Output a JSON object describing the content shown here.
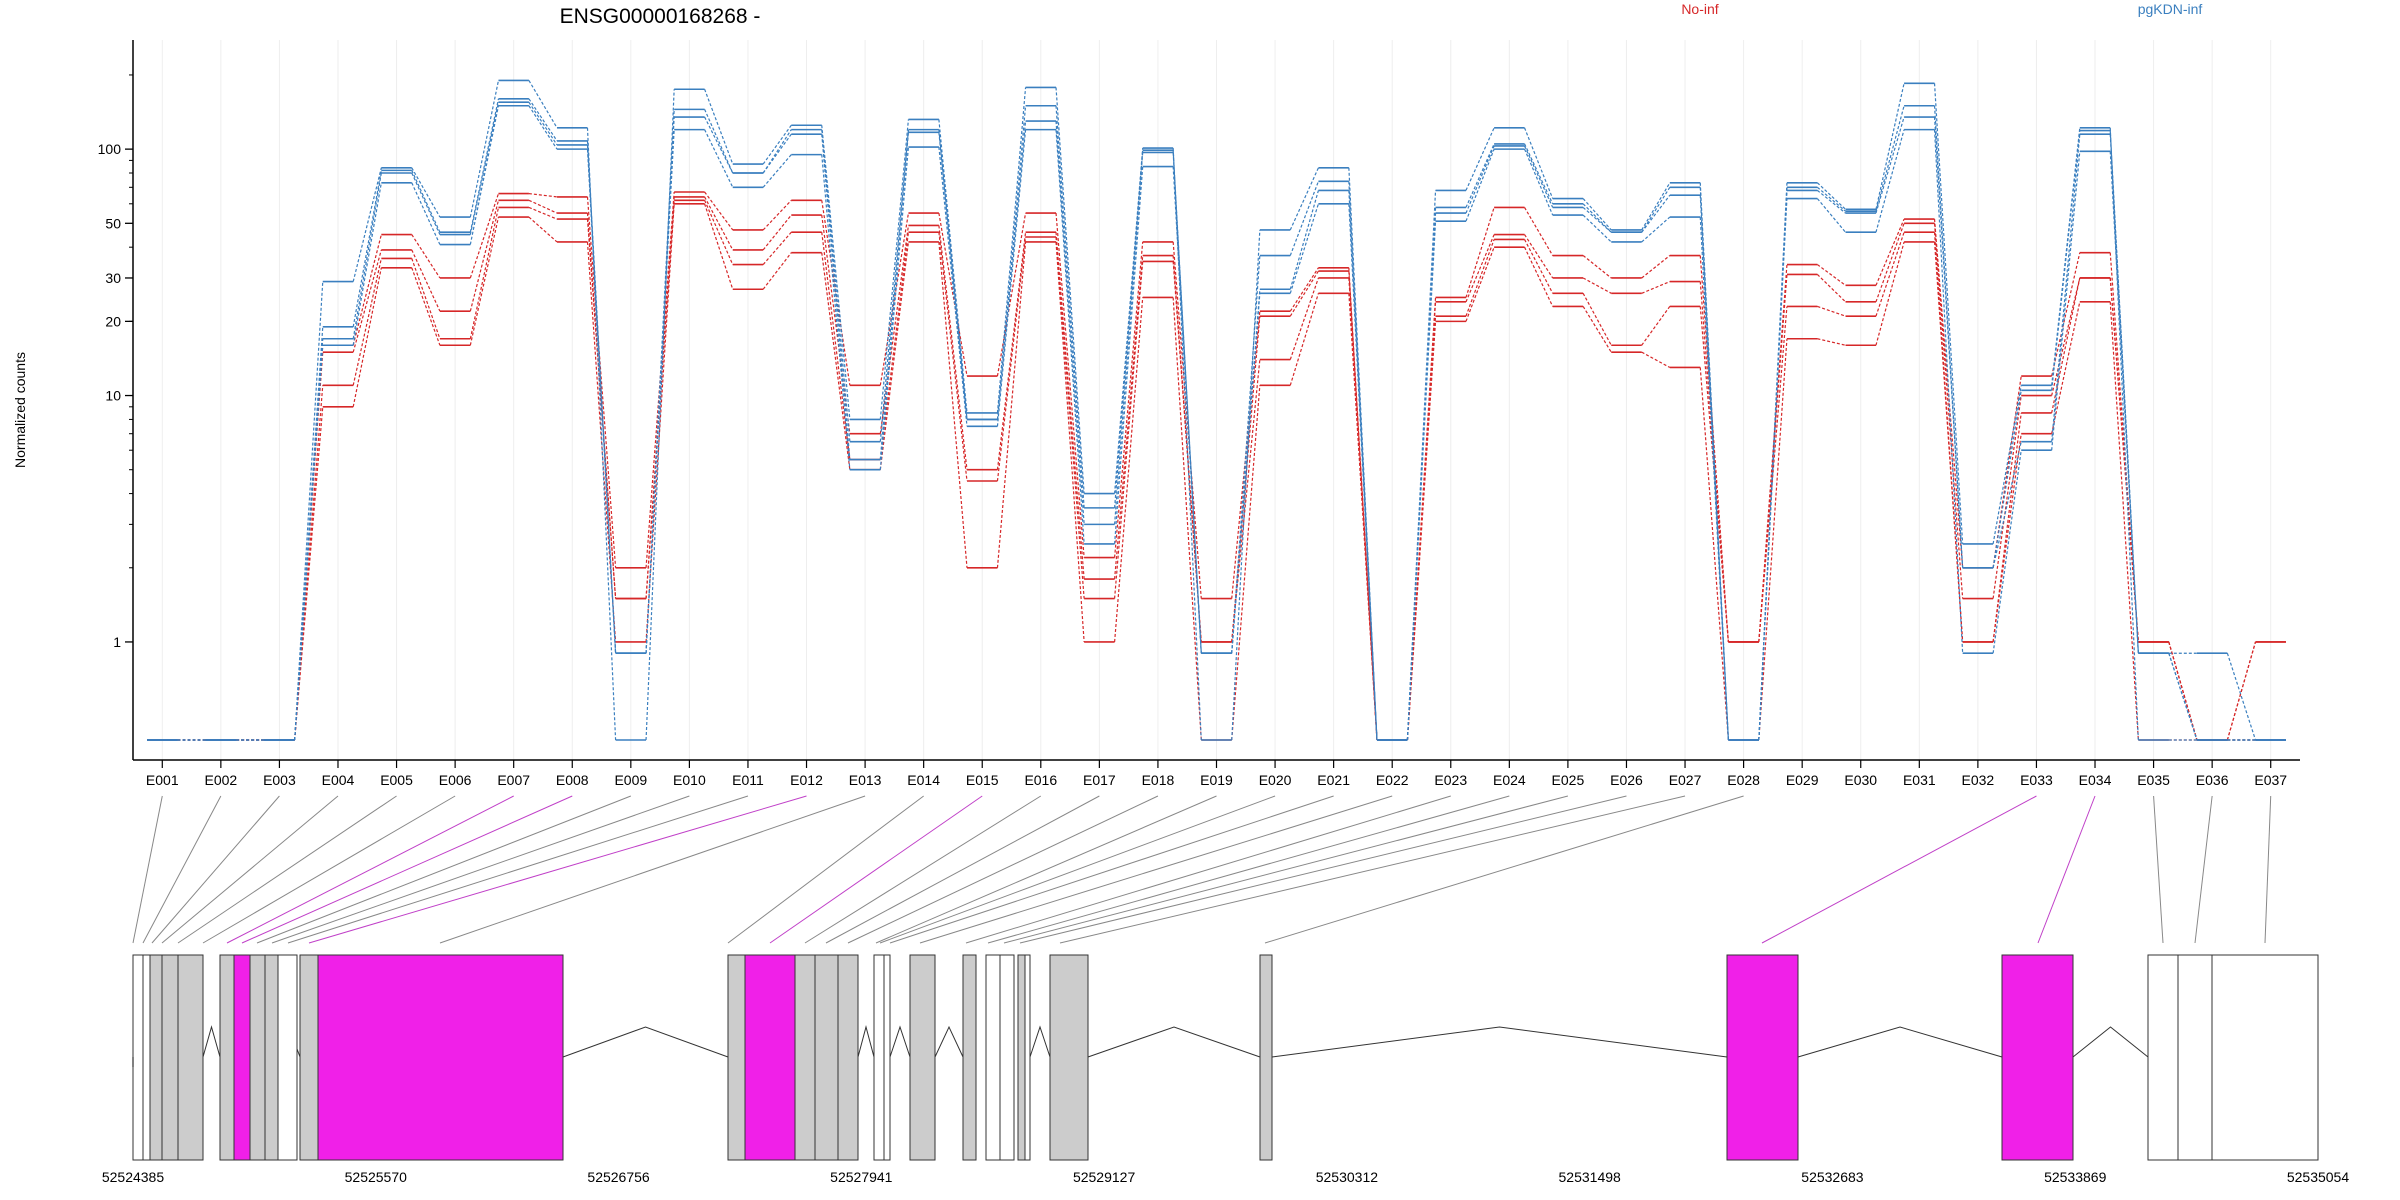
{
  "title": "ENSG00000168268 -",
  "ylabel": "Normalized counts",
  "legend": [
    {
      "name": "No-inf",
      "color": "#d62728"
    },
    {
      "name": "pgKDN-inf",
      "color": "#3a7fbf"
    }
  ],
  "y_ticks": [
    "100",
    "50",
    "30",
    "20",
    "10",
    "1"
  ],
  "genomic_ticks": [
    "52524385",
    "52525570",
    "52526756",
    "52527941",
    "52529127",
    "52530312",
    "52531498",
    "52532683",
    "52533869",
    "52535054"
  ],
  "chart_data": {
    "type": "line",
    "title": "ENSG00000168268 -",
    "xlabel": "",
    "ylabel": "Normalized counts",
    "y_scale": "log",
    "ylim": [
      0.4,
      230
    ],
    "categories": [
      "E001",
      "E002",
      "E003",
      "E004",
      "E005",
      "E006",
      "E007",
      "E008",
      "E009",
      "E010",
      "E011",
      "E012",
      "E013",
      "E014",
      "E015",
      "E016",
      "E017",
      "E018",
      "E019",
      "E020",
      "E021",
      "E022",
      "E023",
      "E024",
      "E025",
      "E026",
      "E027",
      "E028",
      "E029",
      "E030",
      "E031",
      "E032",
      "E033",
      "E034",
      "E035",
      "E036",
      "E037"
    ],
    "series": [
      {
        "name": "No-inf",
        "color": "#d62728",
        "values": [
          0.4,
          0.4,
          0.4,
          9,
          33,
          16,
          53,
          42,
          1,
          60,
          27,
          38,
          5,
          42,
          2,
          42,
          1,
          25,
          0.4,
          11,
          26,
          0.4,
          20,
          40,
          23,
          15,
          13,
          0.4,
          17,
          16,
          42,
          1,
          7,
          24,
          0.4,
          0.4,
          1
        ]
      },
      {
        "name": "No-inf",
        "color": "#d62728",
        "values": [
          0.4,
          0.4,
          0.4,
          11,
          36,
          17,
          58,
          52,
          1.5,
          62,
          34,
          46,
          5.5,
          46,
          4.5,
          44,
          1.5,
          35,
          1,
          14,
          30,
          0.4,
          21,
          43,
          26,
          16,
          23,
          1,
          23,
          21,
          46,
          1,
          8.5,
          30,
          1,
          0.4,
          1
        ]
      },
      {
        "name": "No-inf",
        "color": "#d62728",
        "values": [
          0.4,
          0.4,
          0.4,
          15,
          39,
          22,
          62,
          55,
          1.5,
          64,
          39,
          54,
          7,
          49,
          5,
          46,
          1.8,
          37,
          1,
          21,
          32,
          0.4,
          24,
          45,
          30,
          26,
          29,
          1,
          31,
          24,
          50,
          1.5,
          10,
          30,
          1,
          0.4,
          0.4
        ]
      },
      {
        "name": "No-inf",
        "color": "#d62728",
        "values": [
          0.4,
          0.4,
          0.4,
          16,
          45,
          30,
          66,
          64,
          2,
          67,
          47,
          62,
          11,
          55,
          12,
          55,
          2.2,
          42,
          1.5,
          22,
          33,
          0.4,
          25,
          58,
          37,
          30,
          37,
          1,
          34,
          28,
          52,
          2,
          12,
          38,
          1,
          0.4,
          0.4
        ]
      },
      {
        "name": "pgKDN-inf",
        "color": "#3a7fbf",
        "values": [
          0.4,
          0.4,
          0.4,
          16,
          73,
          41,
          150,
          100,
          0.9,
          120,
          70,
          95,
          5,
          102,
          7.5,
          120,
          2.5,
          85,
          0.9,
          26,
          60,
          0.4,
          51,
          100,
          54,
          42,
          53,
          0.4,
          63,
          46,
          120,
          0.9,
          6,
          98,
          0.9,
          0.9,
          0.4
        ]
      },
      {
        "name": "pgKDN-inf",
        "color": "#3a7fbf",
        "values": [
          0.4,
          0.4,
          0.4,
          17,
          80,
          45,
          155,
          104,
          0.9,
          135,
          80,
          115,
          5.5,
          117,
          8,
          130,
          3,
          97,
          0.9,
          27,
          68,
          0.4,
          55,
          103,
          58,
          46,
          65,
          0.4,
          68,
          55,
          135,
          2,
          6.5,
          115,
          0.9,
          0.4,
          0.4
        ]
      },
      {
        "name": "pgKDN-inf",
        "color": "#3a7fbf",
        "values": [
          0.4,
          0.4,
          0.4,
          19,
          82,
          46,
          160,
          108,
          0.9,
          145,
          80,
          120,
          6.5,
          120,
          8,
          150,
          3.5,
          99,
          0.9,
          37,
          74,
          0.4,
          58,
          105,
          60,
          46,
          70,
          0.4,
          70,
          56,
          150,
          2,
          10.5,
          119,
          0.9,
          0.4,
          0.4
        ]
      },
      {
        "name": "pgKDN-inf",
        "color": "#3a7fbf",
        "values": [
          0.4,
          0.4,
          0.4,
          29,
          84,
          53,
          190,
          122,
          0.4,
          175,
          87,
          125,
          8,
          132,
          8.5,
          178,
          4,
          101,
          0.4,
          47,
          84,
          0.4,
          68,
          122,
          63,
          47,
          73,
          0.4,
          73,
          57,
          185,
          2.5,
          11,
          122,
          0.4,
          0.4,
          0.4
        ]
      }
    ]
  }
}
